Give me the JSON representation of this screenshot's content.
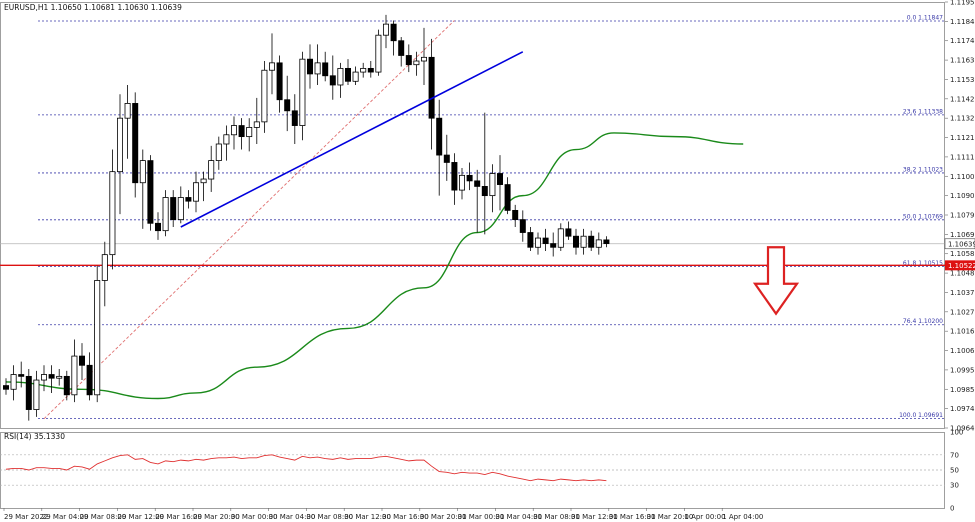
{
  "chart_data": {
    "type": "candlestick",
    "title": "EURUSD,H1  1.10650 1.10681 1.10630 1.10639",
    "price_axis": {
      "ylim": [
        1.0964,
        1.1195
      ],
      "ticks": [
        "1.11950",
        "1.11845",
        "1.11740",
        "1.11635",
        "1.11530",
        "1.11425",
        "1.11320",
        "1.11215",
        "1.11110",
        "1.11005",
        "1.10900",
        "1.10795",
        "1.10690",
        "1.10585",
        "1.10480",
        "1.10375",
        "1.10270",
        "1.10165",
        "1.10060",
        "1.09955",
        "1.09850",
        "1.09745",
        "1.09640"
      ],
      "current_price_label": "1.10639",
      "red_line_label": "1.10522"
    },
    "time_axis": {
      "labels": [
        "29 Mar 2022",
        "29 Mar 04:00",
        "29 Mar 08:00",
        "29 Mar 12:00",
        "29 Mar 16:00",
        "29 Mar 20:00",
        "30 Mar 00:00",
        "30 Mar 04:00",
        "30 Mar 08:00",
        "30 Mar 12:00",
        "30 Mar 16:00",
        "30 Mar 20:00",
        "31 Mar 00:00",
        "31 Mar 04:00",
        "31 Mar 08:00",
        "31 Mar 12:00",
        "31 Mar 16:00",
        "31 Mar 20:00",
        "1 Apr 00:00",
        "1 Apr 04:00"
      ]
    },
    "candles": [
      [
        1.0987,
        1.0991,
        1.0982,
        1.0985
      ],
      [
        1.0985,
        1.0998,
        1.0979,
        1.0993
      ],
      [
        1.0993,
        1.1,
        1.0986,
        1.0992
      ],
      [
        1.0992,
        1.0996,
        1.0968,
        1.0974
      ],
      [
        1.0974,
        1.0995,
        1.097,
        1.099
      ],
      [
        1.099,
        1.0998,
        1.0984,
        1.0993
      ],
      [
        1.0993,
        1.0998,
        1.0983,
        1.0991
      ],
      [
        1.0991,
        1.0996,
        1.0987,
        1.0992
      ],
      [
        1.0992,
        1.0995,
        1.0979,
        1.0982
      ],
      [
        1.0982,
        1.1012,
        1.0978,
        1.1003
      ],
      [
        1.1003,
        1.101,
        1.099,
        1.0998
      ],
      [
        1.0998,
        1.1005,
        1.0979,
        1.0982
      ],
      [
        1.0982,
        1.1052,
        1.0978,
        1.1044
      ],
      [
        1.1044,
        1.1065,
        1.103,
        1.1058
      ],
      [
        1.1058,
        1.1115,
        1.105,
        1.1103
      ],
      [
        1.1103,
        1.1145,
        1.108,
        1.1132
      ],
      [
        1.1132,
        1.115,
        1.111,
        1.114
      ],
      [
        1.114,
        1.1146,
        1.1089,
        1.1097
      ],
      [
        1.1097,
        1.1115,
        1.1072,
        1.1109
      ],
      [
        1.1109,
        1.1112,
        1.1071,
        1.1075
      ],
      [
        1.1075,
        1.1081,
        1.1066,
        1.1071
      ],
      [
        1.1071,
        1.1093,
        1.1068,
        1.1089
      ],
      [
        1.1089,
        1.1093,
        1.1073,
        1.1077
      ],
      [
        1.1077,
        1.1095,
        1.1075,
        1.1089
      ],
      [
        1.1089,
        1.1093,
        1.1083,
        1.1087
      ],
      [
        1.1087,
        1.1103,
        1.1081,
        1.1097
      ],
      [
        1.1097,
        1.1103,
        1.1087,
        1.1099
      ],
      [
        1.1099,
        1.1117,
        1.1092,
        1.1109
      ],
      [
        1.1109,
        1.1122,
        1.1104,
        1.1118
      ],
      [
        1.1118,
        1.1128,
        1.1109,
        1.1123
      ],
      [
        1.1123,
        1.1133,
        1.1115,
        1.1128
      ],
      [
        1.1128,
        1.1132,
        1.1115,
        1.1122
      ],
      [
        1.1122,
        1.1132,
        1.1114,
        1.1127
      ],
      [
        1.1127,
        1.1143,
        1.1118,
        1.113
      ],
      [
        1.113,
        1.1163,
        1.1124,
        1.1158
      ],
      [
        1.1158,
        1.1178,
        1.1145,
        1.1162
      ],
      [
        1.1162,
        1.1166,
        1.1135,
        1.1142
      ],
      [
        1.1142,
        1.1155,
        1.1125,
        1.1136
      ],
      [
        1.1136,
        1.1145,
        1.1118,
        1.1128
      ],
      [
        1.1128,
        1.1168,
        1.112,
        1.1164
      ],
      [
        1.1164,
        1.1172,
        1.1148,
        1.1156
      ],
      [
        1.1156,
        1.1172,
        1.115,
        1.1162
      ],
      [
        1.1162,
        1.1168,
        1.1152,
        1.1155
      ],
      [
        1.1155,
        1.1166,
        1.1142,
        1.115
      ],
      [
        1.115,
        1.1162,
        1.1143,
        1.1159
      ],
      [
        1.1159,
        1.1164,
        1.115,
        1.1152
      ],
      [
        1.1152,
        1.116,
        1.115,
        1.1157
      ],
      [
        1.1157,
        1.1162,
        1.1154,
        1.1159
      ],
      [
        1.1159,
        1.1163,
        1.1154,
        1.1157
      ],
      [
        1.1157,
        1.118,
        1.1155,
        1.1177
      ],
      [
        1.1177,
        1.1188,
        1.117,
        1.1183
      ],
      [
        1.1183,
        1.1185,
        1.1166,
        1.1174
      ],
      [
        1.1174,
        1.1176,
        1.116,
        1.1166
      ],
      [
        1.1166,
        1.1172,
        1.1157,
        1.1161
      ],
      [
        1.1161,
        1.1168,
        1.1155,
        1.1163
      ],
      [
        1.1163,
        1.1181,
        1.115,
        1.1165
      ],
      [
        1.1165,
        1.1175,
        1.1115,
        1.1132
      ],
      [
        1.1132,
        1.1142,
        1.109,
        1.1112
      ],
      [
        1.1112,
        1.1123,
        1.1098,
        1.1108
      ],
      [
        1.1108,
        1.1113,
        1.1085,
        1.1093
      ],
      [
        1.1093,
        1.1105,
        1.1088,
        1.1101
      ],
      [
        1.1101,
        1.1108,
        1.1093,
        1.1098
      ],
      [
        1.1098,
        1.1104,
        1.107,
        1.1095
      ],
      [
        1.1095,
        1.1135,
        1.1069,
        1.109
      ],
      [
        1.109,
        1.1107,
        1.1081,
        1.1102
      ],
      [
        1.1102,
        1.1112,
        1.1082,
        1.1096
      ],
      [
        1.1096,
        1.11,
        1.108,
        1.1082
      ],
      [
        1.1082,
        1.1085,
        1.1073,
        1.1077
      ],
      [
        1.1077,
        1.1082,
        1.1065,
        1.107
      ],
      [
        1.107,
        1.1073,
        1.106,
        1.1062
      ],
      [
        1.1062,
        1.107,
        1.1058,
        1.1067
      ],
      [
        1.1067,
        1.1072,
        1.106,
        1.1064
      ],
      [
        1.1064,
        1.107,
        1.1057,
        1.1062
      ],
      [
        1.1062,
        1.1075,
        1.106,
        1.1072
      ],
      [
        1.1072,
        1.1076,
        1.1066,
        1.1068
      ],
      [
        1.1068,
        1.1072,
        1.1058,
        1.1062
      ],
      [
        1.1062,
        1.1072,
        1.1058,
        1.1068
      ],
      [
        1.1068,
        1.1071,
        1.106,
        1.1062
      ],
      [
        1.1062,
        1.107,
        1.1058,
        1.1066
      ],
      [
        1.1066,
        1.1068,
        1.1062,
        1.1064
      ]
    ],
    "moving_average": {
      "color": "#1a8a1a",
      "points": [
        [
          0,
          1.0989
        ],
        [
          10,
          1.0985
        ],
        [
          20,
          1.098
        ],
        [
          25,
          1.0983
        ],
        [
          33,
          1.0997
        ],
        [
          45,
          1.1018
        ],
        [
          55,
          1.104
        ],
        [
          62,
          1.107
        ],
        [
          68,
          1.109
        ],
        [
          75,
          1.1115
        ],
        [
          80,
          1.1124
        ],
        [
          88,
          1.1122
        ],
        [
          97,
          1.1118
        ]
      ]
    },
    "trend_line": {
      "color": "#0000dd",
      "from": [
        23,
        1.1073
      ],
      "to": [
        68,
        1.1168
      ]
    },
    "fib_diagonal": {
      "color": "#e07070",
      "from": [
        5,
        1.0969
      ],
      "to": [
        59,
        1.1185
      ]
    },
    "fib_levels": [
      {
        "label": "0.0  1.11847",
        "value": 1.11847
      },
      {
        "label": "23.6  1.11338",
        "value": 1.11338
      },
      {
        "label": "38.2  1.11023",
        "value": 1.11023
      },
      {
        "label": "50.0  1.10769",
        "value": 1.10769
      },
      {
        "label": "61.8  1.10515",
        "value": 1.10515
      },
      {
        "label": "76.4  1.10200",
        "value": 1.102
      },
      {
        "label": "100.0  1.09691",
        "value": 1.09691
      }
    ],
    "current_price": 1.10639,
    "red_line_price": 1.10522,
    "rsi": {
      "title": "RSI(14) 35.1330",
      "ylim": [
        0,
        100
      ],
      "ticks": [
        "100",
        "70",
        "50",
        "30",
        "0"
      ],
      "color": "#e03030",
      "values": [
        51,
        52,
        52,
        50,
        53,
        53,
        52,
        52,
        50,
        55,
        54,
        51,
        58,
        62,
        66,
        69,
        70,
        64,
        65,
        60,
        58,
        62,
        61,
        63,
        62,
        64,
        63,
        65,
        66,
        66,
        67,
        65,
        66,
        66,
        69,
        70,
        67,
        65,
        63,
        68,
        66,
        67,
        65,
        64,
        66,
        64,
        65,
        65,
        65,
        67,
        68,
        66,
        64,
        62,
        63,
        63,
        55,
        48,
        47,
        45,
        47,
        46,
        46,
        44,
        47,
        45,
        42,
        40,
        38,
        36,
        38,
        37,
        36,
        38,
        37,
        36,
        37,
        36,
        37,
        36
      ]
    },
    "arrow": {
      "color": "#dd2222",
      "direction": "down"
    }
  }
}
